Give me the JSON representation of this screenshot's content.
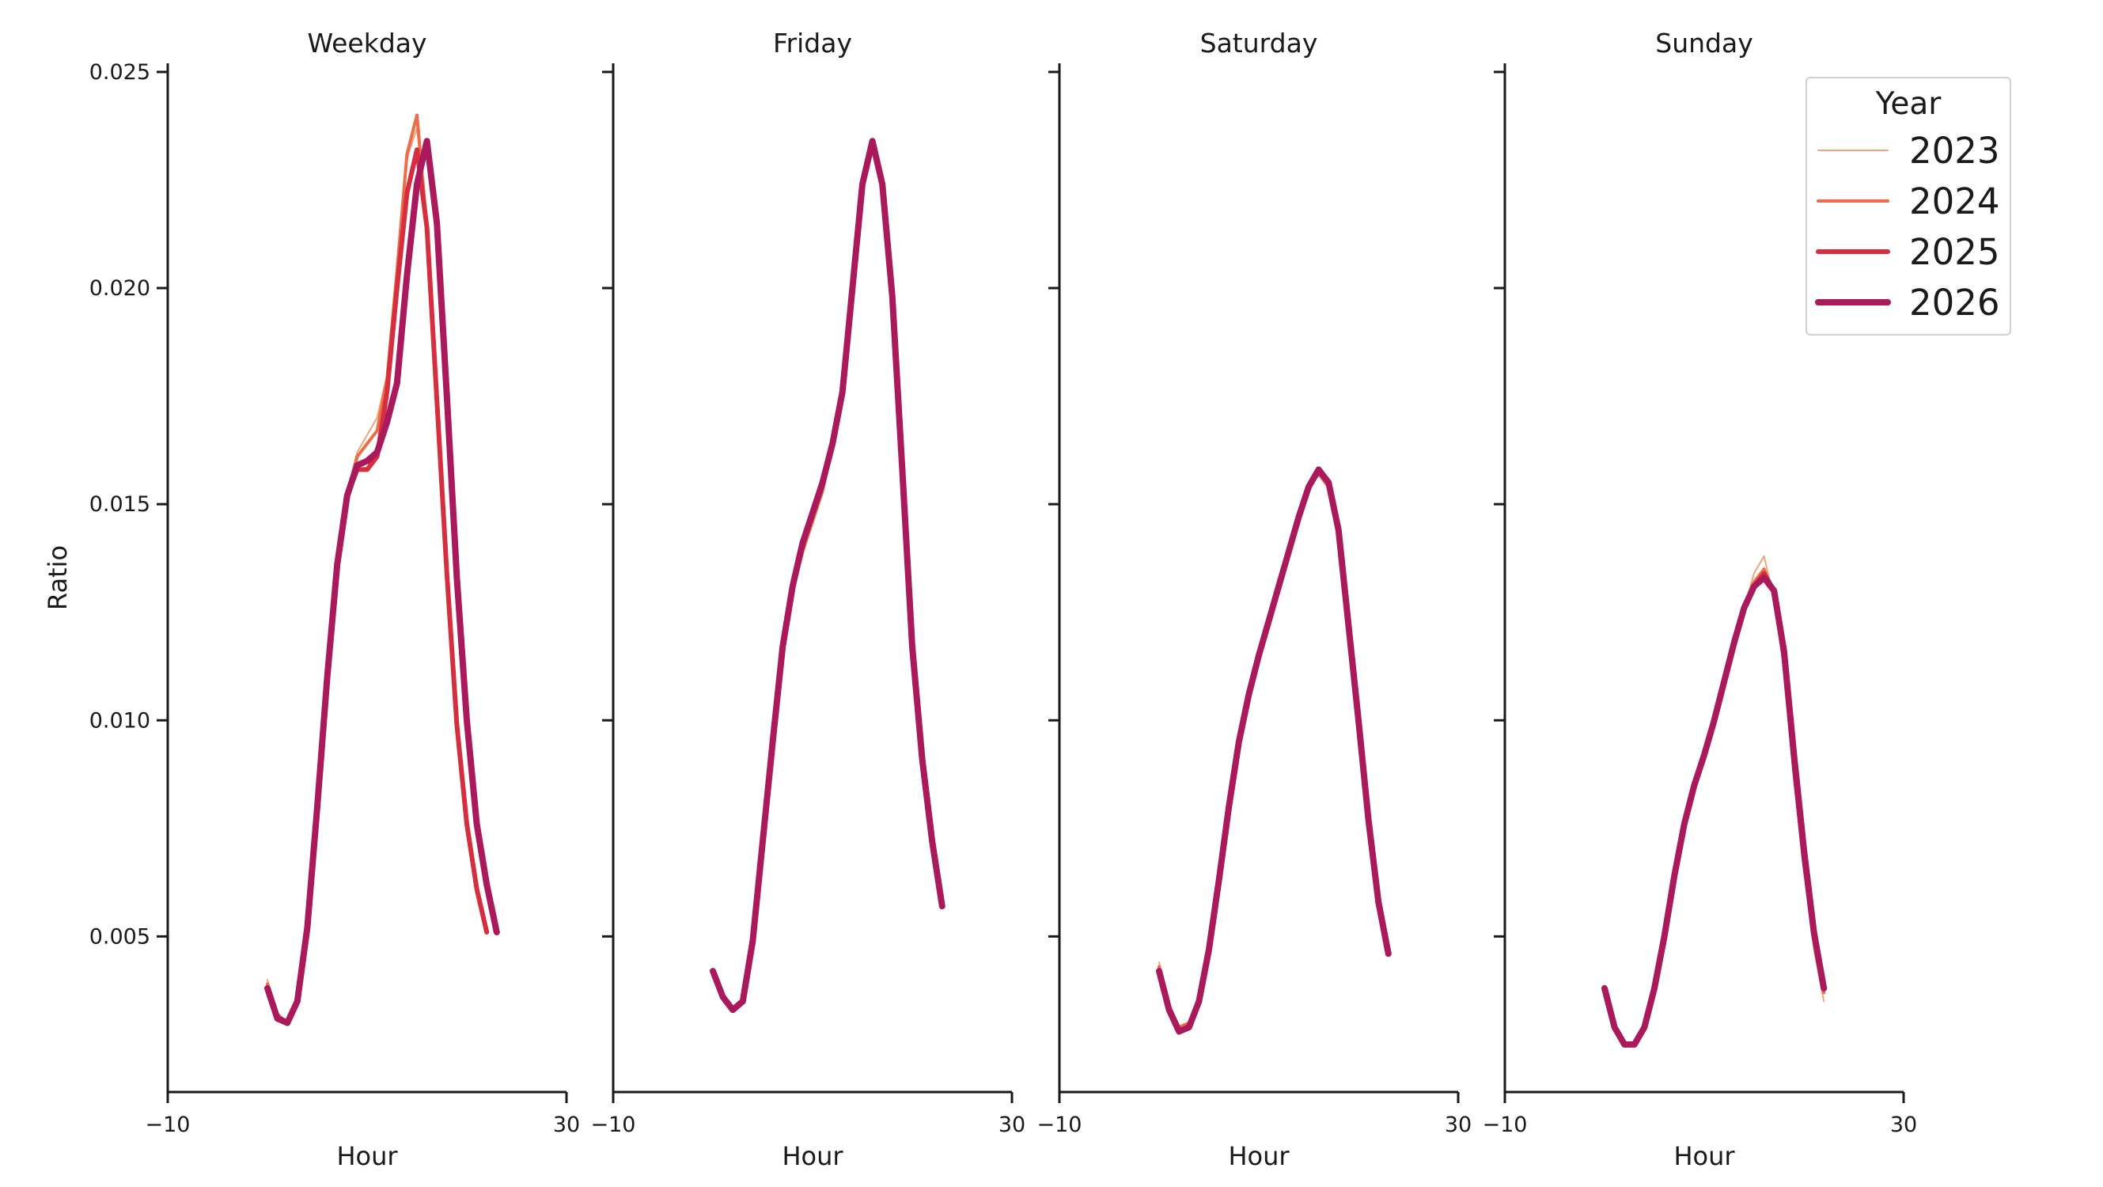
{
  "chart_data": {
    "type": "line",
    "ylabel": "Ratio",
    "xlabel": "Hour",
    "xlim": [
      -10,
      30
    ],
    "ylim": [
      0.0014,
      0.0252
    ],
    "xticks": [
      -10,
      30
    ],
    "xtick_labels": [
      "−10",
      "30"
    ],
    "yticks": [
      0.005,
      0.01,
      0.015,
      0.02,
      0.025
    ],
    "ytick_labels": [
      "0.005",
      "0.010",
      "0.015",
      "0.020",
      "0.025"
    ],
    "grid": false,
    "legend": {
      "title": "Year",
      "placement": "top-right",
      "entries": [
        {
          "label": "2023",
          "color": "#f0a679",
          "width": 2
        },
        {
          "label": "2024",
          "color": "#ea6e48",
          "width": 4
        },
        {
          "label": "2025",
          "color": "#d52e3f",
          "width": 6
        },
        {
          "label": "2026",
          "color": "#a9195c",
          "width": 8
        }
      ]
    },
    "x": [
      0,
      1,
      2,
      3,
      4,
      5,
      6,
      7,
      8,
      9,
      10,
      11,
      12,
      13,
      14,
      15,
      16,
      17,
      18,
      19,
      20,
      21,
      22,
      23
    ],
    "panels": [
      {
        "title": "Weekday",
        "series": [
          {
            "name": "2023",
            "values": [
              0.004,
              0.0032,
              0.003,
              0.0035,
              0.0052,
              0.0082,
              0.0112,
              0.0137,
              0.0153,
              0.0162,
              0.0166,
              0.017,
              0.018,
              0.0205,
              0.023,
              0.0237,
              0.0215,
              0.0175,
              0.0135,
              0.01,
              0.0076,
              0.0062,
              0.0051,
              null
            ]
          },
          {
            "name": "2024",
            "values": [
              0.0039,
              0.0032,
              0.003,
              0.0035,
              0.0052,
              0.0081,
              0.0111,
              0.0136,
              0.0152,
              0.0161,
              0.0164,
              0.0167,
              0.0179,
              0.0204,
              0.0231,
              0.024,
              0.0214,
              0.0174,
              0.0134,
              0.0099,
              0.0076,
              0.0061,
              0.0051,
              null
            ]
          },
          {
            "name": "2025",
            "values": [
              0.0038,
              0.0031,
              0.003,
              0.0035,
              0.0052,
              0.008,
              0.011,
              0.0136,
              0.0152,
              0.0158,
              0.0158,
              0.0161,
              0.0176,
              0.02,
              0.0222,
              0.0232,
              0.0214,
              0.0174,
              0.0134,
              0.0099,
              0.0076,
              0.0061,
              0.0051,
              null
            ]
          },
          {
            "name": "2026",
            "values": [
              0.0038,
              0.0031,
              0.003,
              0.0035,
              0.0052,
              0.008,
              0.011,
              0.0136,
              0.0152,
              0.0159,
              0.016,
              0.0162,
              0.0169,
              0.0178,
              0.0203,
              0.0224,
              0.0234,
              0.0215,
              0.0175,
              0.0133,
              0.01,
              0.0076,
              0.0062,
              0.0051
            ]
          }
        ]
      },
      {
        "title": "Friday",
        "series": [
          {
            "name": "2023",
            "values": [
              0.0042,
              0.0036,
              0.0033,
              0.0035,
              0.0049,
              0.0072,
              0.0095,
              0.0117,
              0.0131,
              0.014,
              0.0148,
              0.0155,
              0.0165,
              0.0176,
              0.02,
              0.0224,
              0.0234,
              0.0224,
              0.0198,
              0.0158,
              0.0117,
              0.0091,
              0.0072,
              0.0057
            ]
          },
          {
            "name": "2024",
            "values": [
              0.0042,
              0.0036,
              0.0033,
              0.0035,
              0.0049,
              0.0072,
              0.0095,
              0.0117,
              0.013,
              0.0139,
              0.0146,
              0.0153,
              0.0164,
              0.0175,
              0.02,
              0.0224,
              0.0234,
              0.0224,
              0.0198,
              0.0158,
              0.0117,
              0.0091,
              0.0072,
              0.0057
            ]
          },
          {
            "name": "2025",
            "values": [
              0.0042,
              0.0036,
              0.0033,
              0.0035,
              0.0049,
              0.0072,
              0.0095,
              0.0117,
              0.0131,
              0.0141,
              0.0148,
              0.0155,
              0.0164,
              0.0176,
              0.02,
              0.0224,
              0.0234,
              0.0224,
              0.0198,
              0.0158,
              0.0117,
              0.0091,
              0.0072,
              0.0057
            ]
          },
          {
            "name": "2026",
            "values": [
              0.0042,
              0.0036,
              0.0033,
              0.0035,
              0.0049,
              0.0072,
              0.0095,
              0.0117,
              0.0131,
              0.0141,
              0.0148,
              0.0155,
              0.0164,
              0.0176,
              0.02,
              0.0224,
              0.0234,
              0.0224,
              0.0198,
              0.0158,
              0.0117,
              0.0091,
              0.0072,
              0.0057
            ]
          }
        ]
      },
      {
        "title": "Saturday",
        "series": [
          {
            "name": "2023",
            "values": [
              0.0044,
              0.0034,
              0.0029,
              0.003,
              0.0035,
              0.0047,
              0.0063,
              0.008,
              0.0095,
              0.0106,
              0.0115,
              0.0123,
              0.0131,
              0.0139,
              0.0147,
              0.0154,
              0.0158,
              0.0155,
              0.0143,
              0.0122,
              0.01,
              0.0077,
              0.0058,
              0.0046
            ]
          },
          {
            "name": "2024",
            "values": [
              0.0043,
              0.0034,
              0.0029,
              0.003,
              0.0035,
              0.0047,
              0.0063,
              0.008,
              0.0095,
              0.0106,
              0.0115,
              0.0123,
              0.0131,
              0.0139,
              0.0147,
              0.0154,
              0.0157,
              0.0154,
              0.0143,
              0.0122,
              0.01,
              0.0077,
              0.0058,
              0.0046
            ]
          },
          {
            "name": "2025",
            "values": [
              0.0042,
              0.0033,
              0.0028,
              0.0029,
              0.0035,
              0.0047,
              0.0063,
              0.008,
              0.0095,
              0.0106,
              0.0115,
              0.0123,
              0.0131,
              0.0139,
              0.0147,
              0.0154,
              0.0158,
              0.0155,
              0.0144,
              0.0122,
              0.01,
              0.0077,
              0.0058,
              0.0046
            ]
          },
          {
            "name": "2026",
            "values": [
              0.0042,
              0.0033,
              0.0028,
              0.0029,
              0.0035,
              0.0047,
              0.0063,
              0.008,
              0.0095,
              0.0106,
              0.0115,
              0.0123,
              0.0131,
              0.0139,
              0.0147,
              0.0154,
              0.0158,
              0.0155,
              0.0144,
              0.0122,
              0.01,
              0.0077,
              0.0058,
              0.0046
            ]
          }
        ]
      },
      {
        "title": "Sunday",
        "series": [
          {
            "name": "2023",
            "values": [
              0.0037,
              0.0029,
              0.0025,
              0.0025,
              0.0029,
              0.0038,
              0.005,
              0.0064,
              0.0076,
              0.0085,
              0.0092,
              0.01,
              0.0109,
              0.0118,
              0.0126,
              0.0134,
              0.0138,
              0.0128,
              0.0112,
              0.0086,
              0.0066,
              0.0047,
              0.0035,
              null
            ]
          },
          {
            "name": "2024",
            "values": [
              0.0038,
              0.0029,
              0.0025,
              0.0025,
              0.0029,
              0.0038,
              0.005,
              0.0064,
              0.0076,
              0.0085,
              0.0092,
              0.01,
              0.0109,
              0.0118,
              0.0126,
              0.0132,
              0.0135,
              0.0129,
              0.0113,
              0.0088,
              0.0067,
              0.0049,
              0.0037,
              null
            ]
          },
          {
            "name": "2025",
            "values": [
              0.0038,
              0.0029,
              0.0025,
              0.0025,
              0.0029,
              0.0038,
              0.005,
              0.0064,
              0.0076,
              0.0085,
              0.0092,
              0.01,
              0.0109,
              0.0118,
              0.0126,
              0.0131,
              0.0134,
              0.013,
              0.0115,
              0.009,
              0.0068,
              0.005,
              0.0038,
              null
            ]
          },
          {
            "name": "2026",
            "values": [
              0.0038,
              0.0029,
              0.0025,
              0.0025,
              0.0029,
              0.0038,
              0.005,
              0.0064,
              0.0076,
              0.0085,
              0.0092,
              0.01,
              0.0109,
              0.0118,
              0.0126,
              0.0131,
              0.0133,
              0.013,
              0.0116,
              0.0092,
              0.007,
              0.0051,
              0.0038,
              null
            ]
          }
        ]
      }
    ]
  }
}
